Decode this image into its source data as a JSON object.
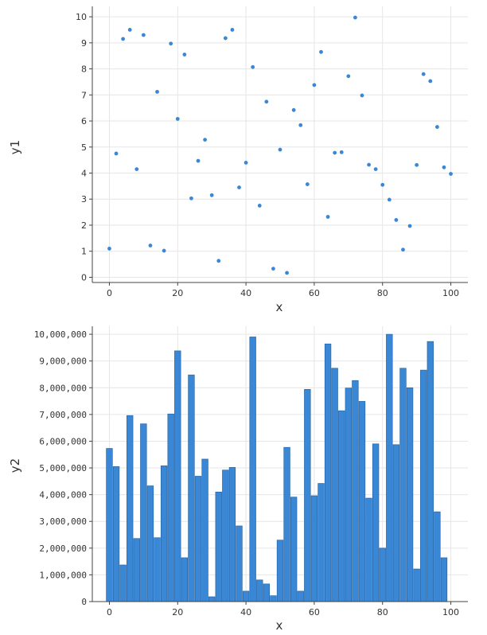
{
  "chart_data": [
    {
      "type": "scatter",
      "xlabel": "x",
      "ylabel": "y1",
      "xlim": [
        -5,
        105
      ],
      "ylim": [
        -0.2,
        10.4
      ],
      "xticks": [
        0,
        20,
        40,
        60,
        80,
        100
      ],
      "xtick_labels": [
        "0",
        "20",
        "40",
        "60",
        "80",
        "100"
      ],
      "yticks": [
        0,
        1,
        2,
        3,
        4,
        5,
        6,
        7,
        8,
        9,
        10
      ],
      "ytick_labels": [
        "0",
        "1",
        "2",
        "3",
        "4",
        "5",
        "6",
        "7",
        "8",
        "9",
        "10"
      ],
      "grid": true,
      "color": "#3a87d6",
      "x": [
        0,
        2,
        4,
        6,
        8,
        10,
        12,
        14,
        16,
        18,
        20,
        22,
        24,
        26,
        28,
        30,
        32,
        34,
        36,
        38,
        40,
        42,
        44,
        46,
        48,
        50,
        52,
        54,
        56,
        58,
        60,
        62,
        64,
        66,
        68,
        70,
        72,
        74,
        76,
        78,
        80,
        82,
        84,
        86,
        88,
        90,
        92,
        94,
        96,
        98,
        100
      ],
      "y": [
        1.1,
        4.75,
        9.15,
        9.5,
        4.15,
        9.3,
        1.22,
        7.12,
        1.02,
        8.97,
        6.08,
        8.55,
        3.03,
        4.47,
        5.28,
        3.15,
        0.63,
        9.18,
        9.5,
        3.45,
        4.4,
        8.07,
        2.75,
        6.74,
        0.33,
        4.9,
        0.17,
        6.42,
        5.84,
        3.57,
        7.38,
        8.65,
        2.32,
        4.78,
        4.8,
        7.72,
        9.97,
        6.98,
        4.32,
        4.15,
        3.55,
        2.98,
        2.2,
        1.06,
        1.97,
        4.31,
        7.8,
        7.53,
        5.77,
        4.22,
        3.97
      ]
    },
    {
      "type": "bar",
      "xlabel": "x",
      "ylabel": "y2",
      "xlim": [
        -5,
        105
      ],
      "ylim": [
        0,
        10300000
      ],
      "xticks": [
        0,
        20,
        40,
        60,
        80,
        100
      ],
      "xtick_labels": [
        "0",
        "20",
        "40",
        "60",
        "80",
        "100"
      ],
      "yticks": [
        0,
        1000000,
        2000000,
        3000000,
        4000000,
        5000000,
        6000000,
        7000000,
        8000000,
        9000000,
        10000000
      ],
      "ytick_labels": [
        "0",
        "1,000,000",
        "2,000,000",
        "3,000,000",
        "4,000,000",
        "5,000,000",
        "6,000,000",
        "7,000,000",
        "8,000,000",
        "9,000,000",
        "10,000,000"
      ],
      "grid": true,
      "color": "#3a87d6",
      "x": [
        0,
        2,
        4,
        6,
        8,
        10,
        12,
        14,
        16,
        18,
        20,
        22,
        24,
        26,
        28,
        30,
        32,
        34,
        36,
        38,
        40,
        42,
        44,
        46,
        48,
        50,
        52,
        54,
        56,
        58,
        60,
        62,
        64,
        66,
        68,
        70,
        72,
        74,
        76,
        78,
        80,
        82,
        84,
        86,
        88,
        90,
        92,
        94,
        96,
        98
      ],
      "values": [
        5730000,
        5050000,
        1370000,
        6960000,
        2360000,
        6650000,
        4330000,
        2390000,
        5080000,
        7020000,
        9380000,
        1640000,
        8480000,
        4690000,
        5330000,
        180000,
        4100000,
        4920000,
        5020000,
        2830000,
        390000,
        9900000,
        810000,
        660000,
        220000,
        2300000,
        5770000,
        3910000,
        390000,
        7940000,
        3960000,
        4420000,
        9640000,
        8730000,
        7140000,
        7990000,
        8270000,
        7490000,
        3870000,
        5900000,
        2000000,
        10000000,
        5870000,
        8730000,
        8000000,
        1220000,
        8660000,
        9730000,
        3360000,
        1640000
      ]
    }
  ]
}
